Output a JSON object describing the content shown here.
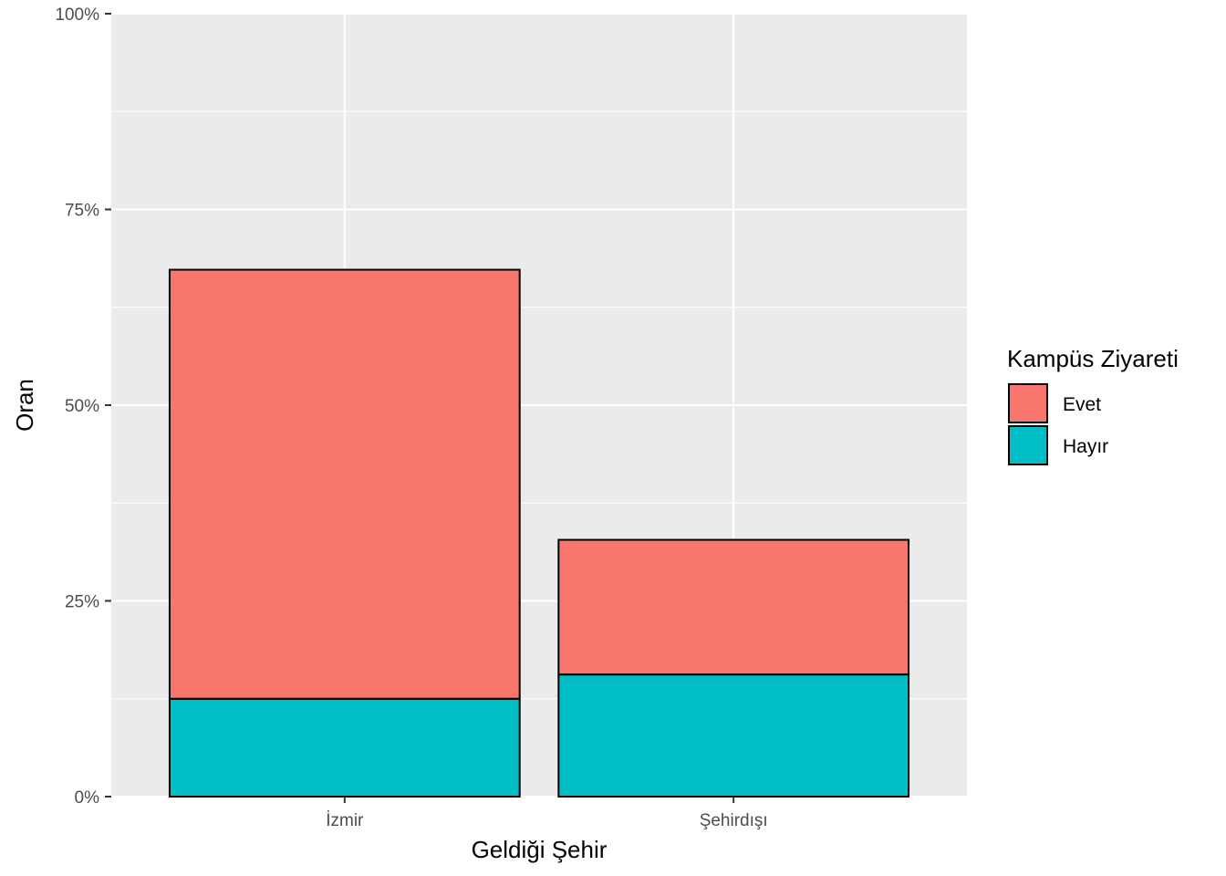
{
  "chart_data": {
    "type": "bar",
    "stacked": true,
    "categories": [
      "İzmir",
      "Şehirdışı"
    ],
    "series": [
      {
        "name": "Hayır",
        "color": "#00BFC4",
        "values": [
          12.5,
          15.6
        ]
      },
      {
        "name": "Evet",
        "color": "#F8766D",
        "values": [
          54.8,
          17.2
        ]
      }
    ],
    "xlabel": "Geldiği Şehir",
    "ylabel": "Oran",
    "ylim": [
      0,
      100
    ],
    "yticks": [
      0,
      25,
      50,
      75,
      100
    ],
    "ytick_labels": [
      "0%",
      "25%",
      "50%",
      "75%",
      "100%"
    ],
    "grid": true,
    "legend": {
      "title": "Kampüs Ziyareti",
      "position": "right",
      "entries": [
        {
          "label": "Evet",
          "color": "#F8766D"
        },
        {
          "label": "Hayır",
          "color": "#00BFC4"
        }
      ]
    }
  }
}
